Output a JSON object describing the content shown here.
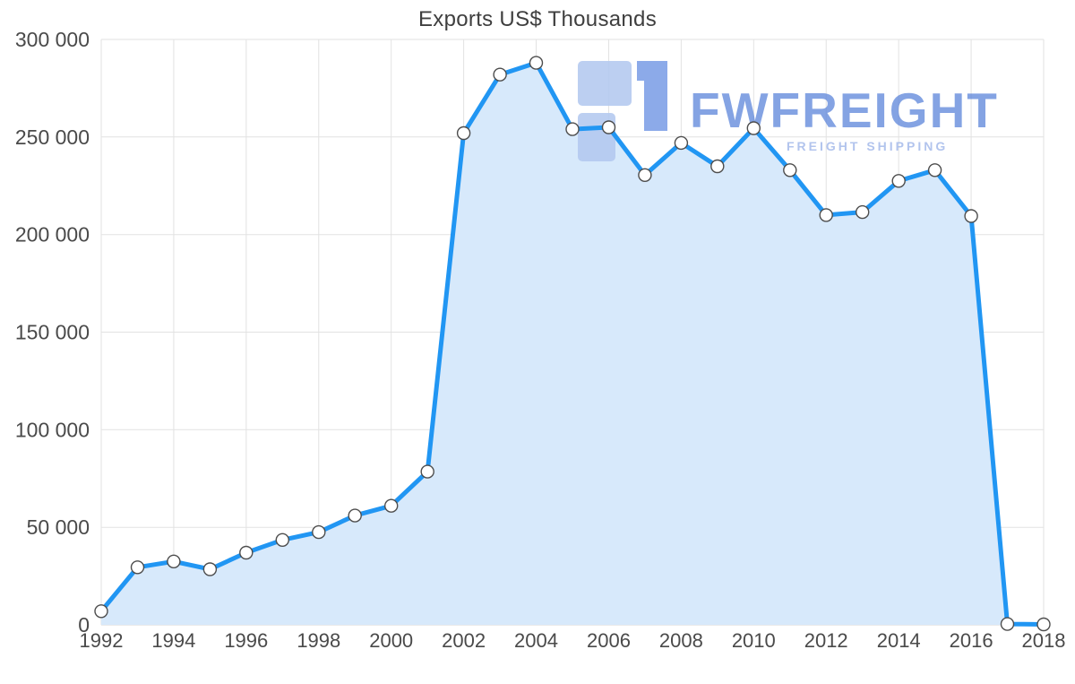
{
  "title": "Exports US$ Thousands",
  "watermark": {
    "brand": "FWFREIGHT",
    "tagline": "FREIGHT SHIPPING",
    "brand_color": "#5b84da",
    "tagline_color": "#a3b9ea",
    "icon_light_color": "#b3c9f0",
    "icon_dark_color": "#7d9fe6"
  },
  "chart_data": {
    "type": "area",
    "title": "Exports US$ Thousands",
    "x": [
      1992,
      1993,
      1994,
      1995,
      1996,
      1997,
      1998,
      1999,
      2000,
      2001,
      2002,
      2003,
      2004,
      2005,
      2006,
      2007,
      2008,
      2009,
      2010,
      2011,
      2012,
      2013,
      2014,
      2015,
      2016,
      2017,
      2018
    ],
    "series": [
      {
        "name": "Exports US$ Thousands",
        "values": [
          7000,
          29500,
          32500,
          28500,
          37000,
          43500,
          47500,
          56000,
          61000,
          78500,
          252000,
          282000,
          288000,
          254000,
          255000,
          230500,
          247000,
          235000,
          254500,
          233000,
          210000,
          211500,
          227500,
          233000,
          209500,
          400,
          250
        ]
      }
    ],
    "ylim": [
      0,
      300000
    ],
    "y_ticks": [
      0,
      50000,
      100000,
      150000,
      200000,
      250000,
      300000
    ],
    "y_tick_labels": [
      "0",
      "50 000",
      "100 000",
      "150 000",
      "200 000",
      "250 000",
      "300 000"
    ],
    "x_tick_labels": [
      "1992",
      "1994",
      "1996",
      "1998",
      "2000",
      "2002",
      "2004",
      "2006",
      "2008",
      "2010",
      "2012",
      "2014",
      "2016",
      "2018"
    ],
    "grid": true,
    "legend": "none",
    "line_color": "#2196f3",
    "fill_color": "#d7e9fb",
    "marker_fill": "#ffffff",
    "marker_stroke": "#4d4d4d",
    "grid_color": "#e2e2e2",
    "axis_line_color": "#d4d4d4"
  }
}
